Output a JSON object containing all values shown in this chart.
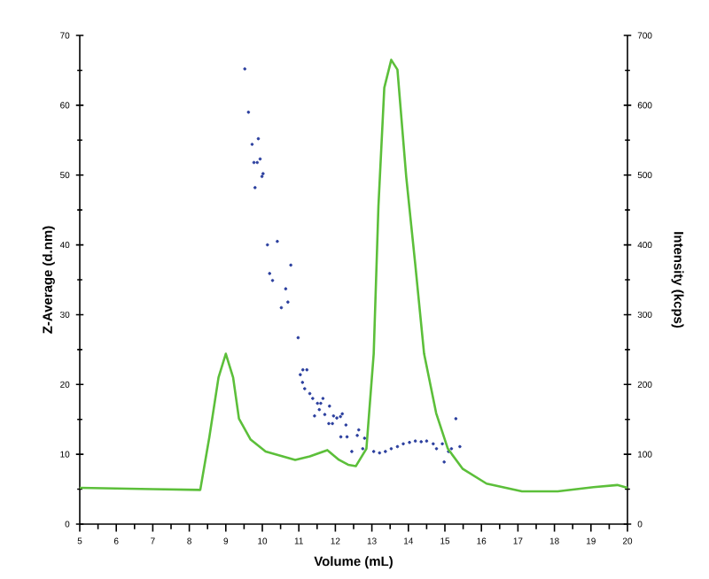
{
  "chart_data": {
    "type": "scatter",
    "xlabel": "Volume (mL)",
    "ylabel": "Z-Average (d.nm)",
    "y2label": "Intensity (kcps)",
    "xlim": [
      5,
      20
    ],
    "xticks": [
      5,
      6,
      7,
      8,
      9,
      10,
      11,
      12,
      13,
      14,
      15,
      16,
      17,
      18,
      19,
      20
    ],
    "ylim": [
      0,
      70
    ],
    "yticks": [
      0,
      10,
      20,
      30,
      40,
      50,
      60,
      70
    ],
    "y2lim": [
      0,
      700
    ],
    "y2ticks": [
      0,
      100,
      200,
      300,
      400,
      500,
      600,
      700
    ],
    "grid": false,
    "legend": false,
    "series": [
      {
        "marker": "circle",
        "color": "#2b3f9e",
        "x": [
          9.52,
          9.62,
          9.72,
          9.89,
          9.77,
          9.86,
          9.94,
          9.99,
          10.02,
          9.8,
          10.14,
          10.41,
          10.2,
          10.28,
          10.64,
          10.78,
          10.7,
          10.52,
          10.98,
          11.04,
          11.11,
          11.22,
          11.1,
          11.16,
          11.3,
          11.38,
          11.43,
          11.51,
          11.6,
          11.66,
          11.56,
          11.71,
          11.84,
          11.82,
          11.92,
          11.95,
          12.04,
          12.14,
          12.19,
          12.15,
          12.29,
          12.32,
          12.45,
          12.6,
          12.64,
          12.75,
          12.8,
          13.05,
          13.21,
          13.37,
          13.53,
          13.7,
          13.86,
          14.03,
          14.19,
          14.35,
          14.5,
          14.68,
          14.77,
          14.93,
          14.98,
          15.1,
          15.18,
          15.3,
          15.41
        ],
        "values": [
          65.2,
          59,
          54.4,
          55.2,
          51.8,
          51.8,
          52.3,
          49.8,
          50.2,
          48.2,
          40,
          40.5,
          35.9,
          34.9,
          33.7,
          37.1,
          31.8,
          31,
          26.7,
          21.4,
          22.1,
          22.1,
          20.3,
          19.4,
          18.7,
          18,
          15.5,
          17.3,
          17.3,
          18,
          16.4,
          15.7,
          16.9,
          14.4,
          14.4,
          15.5,
          15.2,
          15.4,
          15.8,
          12.5,
          14.2,
          12.5,
          10.4,
          12.7,
          13.5,
          10.8,
          12.3,
          10.4,
          10.2,
          10.4,
          10.8,
          11.1,
          11.5,
          11.7,
          11.9,
          11.8,
          11.9,
          11.5,
          10.8,
          11.5,
          8.9,
          10.4,
          10.8,
          15.1,
          11.1
        ]
      },
      {
        "type": "line",
        "axis": "y2",
        "marker": "none",
        "line_style": "solid",
        "color": "#5cbf3a",
        "x": [
          5,
          7,
          8.3,
          8.55,
          8.8,
          9.0,
          9.2,
          9.36,
          9.68,
          10.09,
          10.9,
          11.3,
          11.78,
          12.1,
          12.35,
          12.56,
          12.85,
          13.05,
          13.18,
          13.34,
          13.53,
          13.7,
          13.94,
          14.19,
          14.43,
          14.76,
          15.08,
          15.49,
          16.14,
          17.11,
          18.09,
          19.07,
          19.72,
          20
        ],
        "values": [
          52,
          50,
          49,
          125,
          210,
          244,
          210,
          151,
          121,
          104,
          92,
          97,
          106,
          92,
          85,
          83,
          108,
          244,
          456,
          625,
          665,
          651,
          498,
          371,
          244,
          159,
          108,
          79,
          58,
          47,
          47,
          53,
          56,
          52
        ]
      }
    ]
  }
}
